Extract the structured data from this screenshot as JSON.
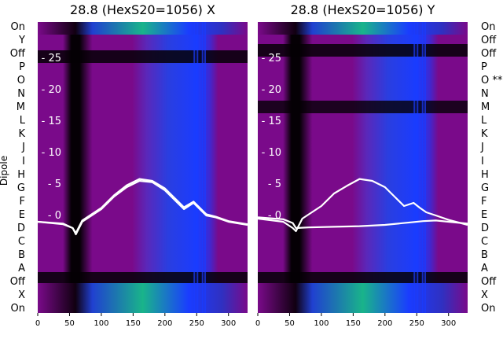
{
  "colors": {
    "heat_low": "#050005",
    "heat_mid": "#7a0a8a",
    "heat_high_blue": "#1a3cff",
    "heat_top_green": "#19b48a",
    "line": "#ffffff",
    "tick_text": "#ffffff"
  },
  "dipole_axis_label": "Dipole",
  "left_dipole_labels": [
    "On",
    "Y",
    "Off",
    "P",
    "O",
    "N",
    "M",
    "L",
    "K",
    "J",
    "I",
    "H",
    "G",
    "F",
    "E",
    "D",
    "C",
    "B",
    "A",
    "Off",
    "X",
    "On"
  ],
  "right_dipole_labels": [
    "On",
    "Off",
    "Off",
    "P",
    "O **",
    "N",
    "M",
    "L",
    "K",
    "J",
    "I",
    "H",
    "G",
    "F",
    "E",
    "D",
    "C",
    "B",
    "A",
    "Off",
    "X",
    "On"
  ],
  "chart_data": [
    {
      "type": "heatmap",
      "title": "28.8 (HexS20=1056) X",
      "xlabel": "",
      "ylabel": "Dipole",
      "xlim": [
        0,
        330
      ],
      "xticks": [
        "0",
        "50",
        "100",
        "150",
        "200",
        "250",
        "300"
      ],
      "inner_ylim": [
        -3,
        27
      ],
      "inner_yticks": [
        "0",
        "5",
        "10",
        "15",
        "20",
        "25"
      ],
      "series": [
        {
          "name": "trace-1",
          "x": [
            0,
            40,
            55,
            60,
            70,
            100,
            120,
            140,
            160,
            180,
            200,
            215,
            230,
            245,
            255,
            265,
            280,
            300,
            330
          ],
          "y": [
            -1,
            -1.4,
            -2,
            -3,
            -1,
            1,
            3,
            4.5,
            5.5,
            5.3,
            4,
            2.5,
            1,
            2,
            1,
            0,
            -0.3,
            -1,
            -1.5
          ]
        },
        {
          "name": "trace-2",
          "x": [
            0,
            40,
            55,
            60,
            70,
            100,
            120,
            140,
            160,
            180,
            200,
            215,
            230,
            245,
            255,
            265,
            280,
            300,
            330
          ],
          "y": [
            -1,
            -1.3,
            -2,
            -2.8,
            -0.8,
            1.2,
            3.2,
            4.8,
            5.8,
            5.5,
            4.3,
            2.8,
            1.3,
            2.2,
            1.2,
            0.2,
            -0.2,
            -0.9,
            -1.4
          ]
        }
      ]
    },
    {
      "type": "heatmap",
      "title": "28.8 (HexS20=1056) Y",
      "xlabel": "",
      "ylabel": "",
      "xlim": [
        0,
        330
      ],
      "xticks": [
        "0",
        "50",
        "100",
        "150",
        "200",
        "250",
        "300"
      ],
      "inner_ylim": [
        -3,
        27
      ],
      "inner_yticks": [
        "0",
        "5",
        "10",
        "15",
        "20",
        "25"
      ],
      "series": [
        {
          "name": "trace-1",
          "x": [
            0,
            40,
            55,
            60,
            70,
            100,
            120,
            140,
            160,
            180,
            200,
            215,
            230,
            245,
            255,
            265,
            280,
            300,
            330
          ],
          "y": [
            -0.5,
            -1,
            -2,
            -2.5,
            -0.5,
            1.5,
            3.5,
            4.7,
            5.8,
            5.5,
            4.5,
            3,
            1.5,
            2,
            1.2,
            0.5,
            0,
            -0.7,
            -1.5
          ]
        },
        {
          "name": "trace-2",
          "x": [
            0,
            40,
            55,
            60,
            80,
            120,
            160,
            200,
            240,
            260,
            280,
            300,
            330
          ],
          "y": [
            -0.3,
            -0.6,
            -1.2,
            -2,
            -1.9,
            -1.8,
            -1.7,
            -1.5,
            -1.1,
            -0.9,
            -0.8,
            -1,
            -1.3
          ]
        }
      ]
    }
  ]
}
